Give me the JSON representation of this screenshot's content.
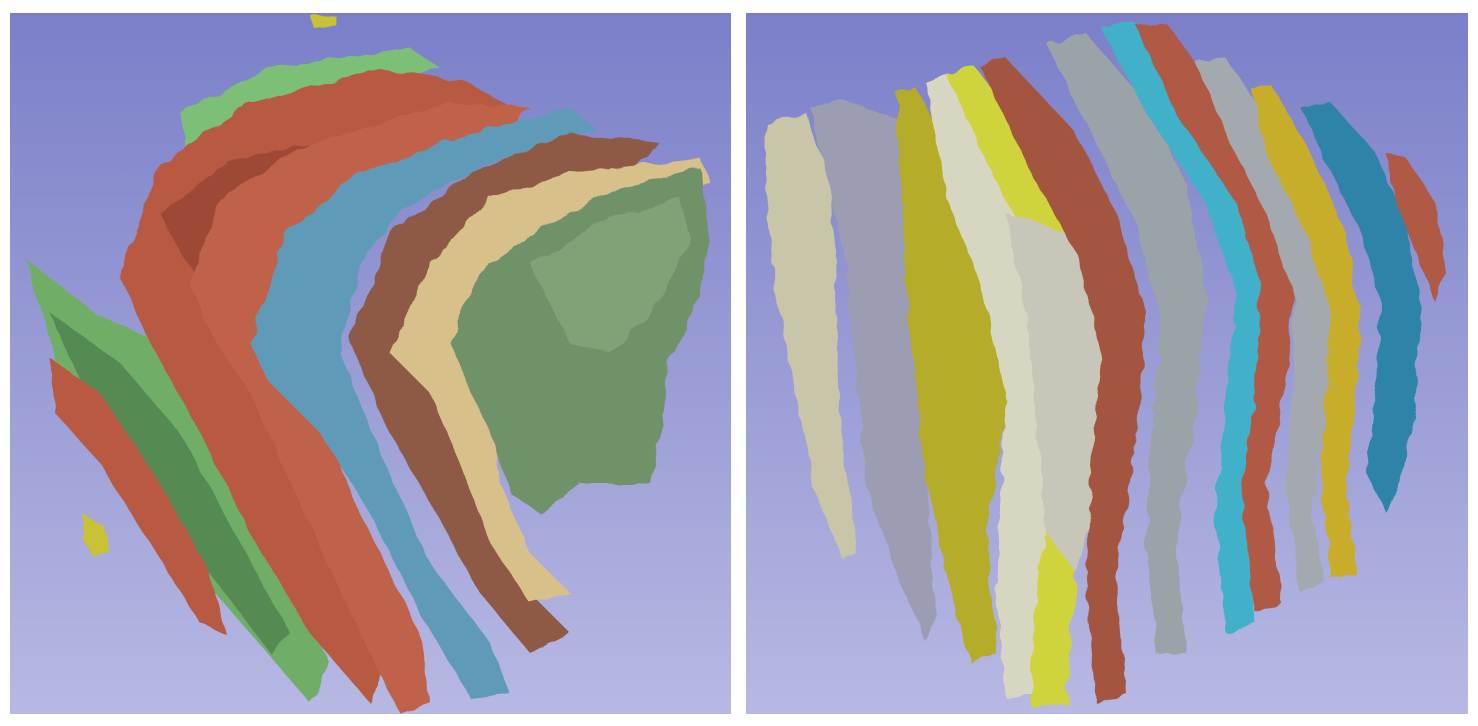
{
  "figure": {
    "panels": [
      {
        "id": "left",
        "subject": "3d-segmented-layers-curved",
        "layer_colors": [
          "#6fae68",
          "#b85a43",
          "#5f9bb8",
          "#8e5a44",
          "#d8c08a",
          "#6f9268",
          "#c9c235"
        ]
      },
      {
        "id": "right",
        "subject": "3d-segmented-layers-vertical-slabs",
        "layer_colors": [
          "#c8c5a8",
          "#9c9cb2",
          "#b5ac2b",
          "#d7d6c0",
          "#cfd43c",
          "#a4543f",
          "#9aa3a8",
          "#3fb1c9",
          "#a4a9b0",
          "#c8ad2c",
          "#2f83a8",
          "#b05a44"
        ]
      }
    ]
  }
}
